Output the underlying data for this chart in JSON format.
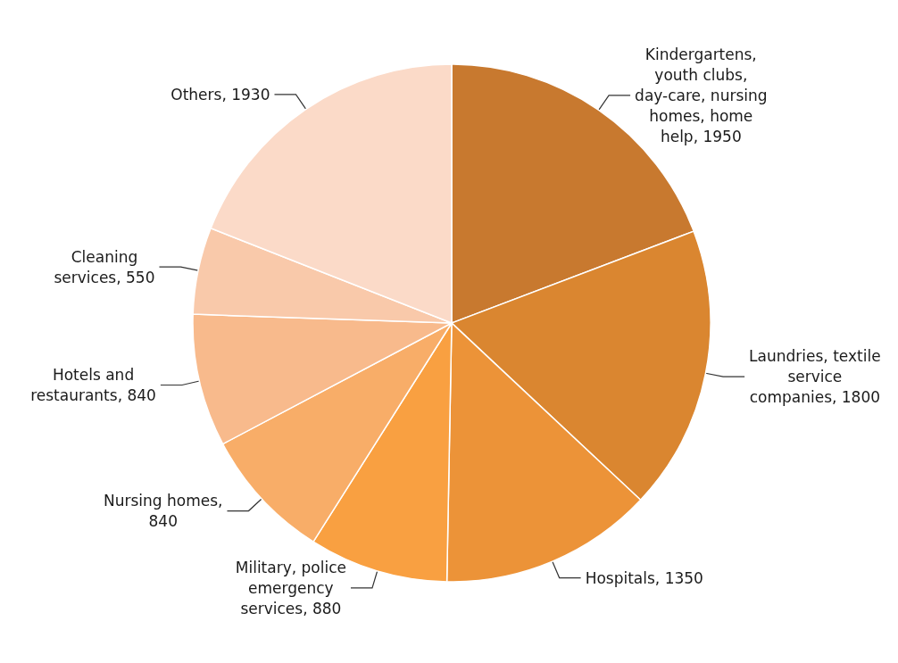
{
  "chart_data": {
    "type": "pie",
    "categories": [
      "Kindergartens, youth clubs, day-care, nursing homes, home help",
      "Laundries, textile service companies",
      "Hospitals",
      "Military, police emergency services",
      "Nursing homes",
      "Hotels and restaurants",
      "Cleaning services",
      "Others"
    ],
    "values": [
      1950,
      1800,
      1350,
      880,
      840,
      840,
      550,
      1930
    ],
    "colors": [
      "#c8792f",
      "#da8630",
      "#ec9338",
      "#f9a041",
      "#f8ad68",
      "#f8ba8c",
      "#f9c9aa",
      "#fbdac8"
    ],
    "value_labels": [
      ", 1950",
      ", 1800",
      ", 1350",
      ", 880",
      ", 840",
      ", 840",
      ", 550",
      ", 1930"
    ],
    "legend": false
  }
}
